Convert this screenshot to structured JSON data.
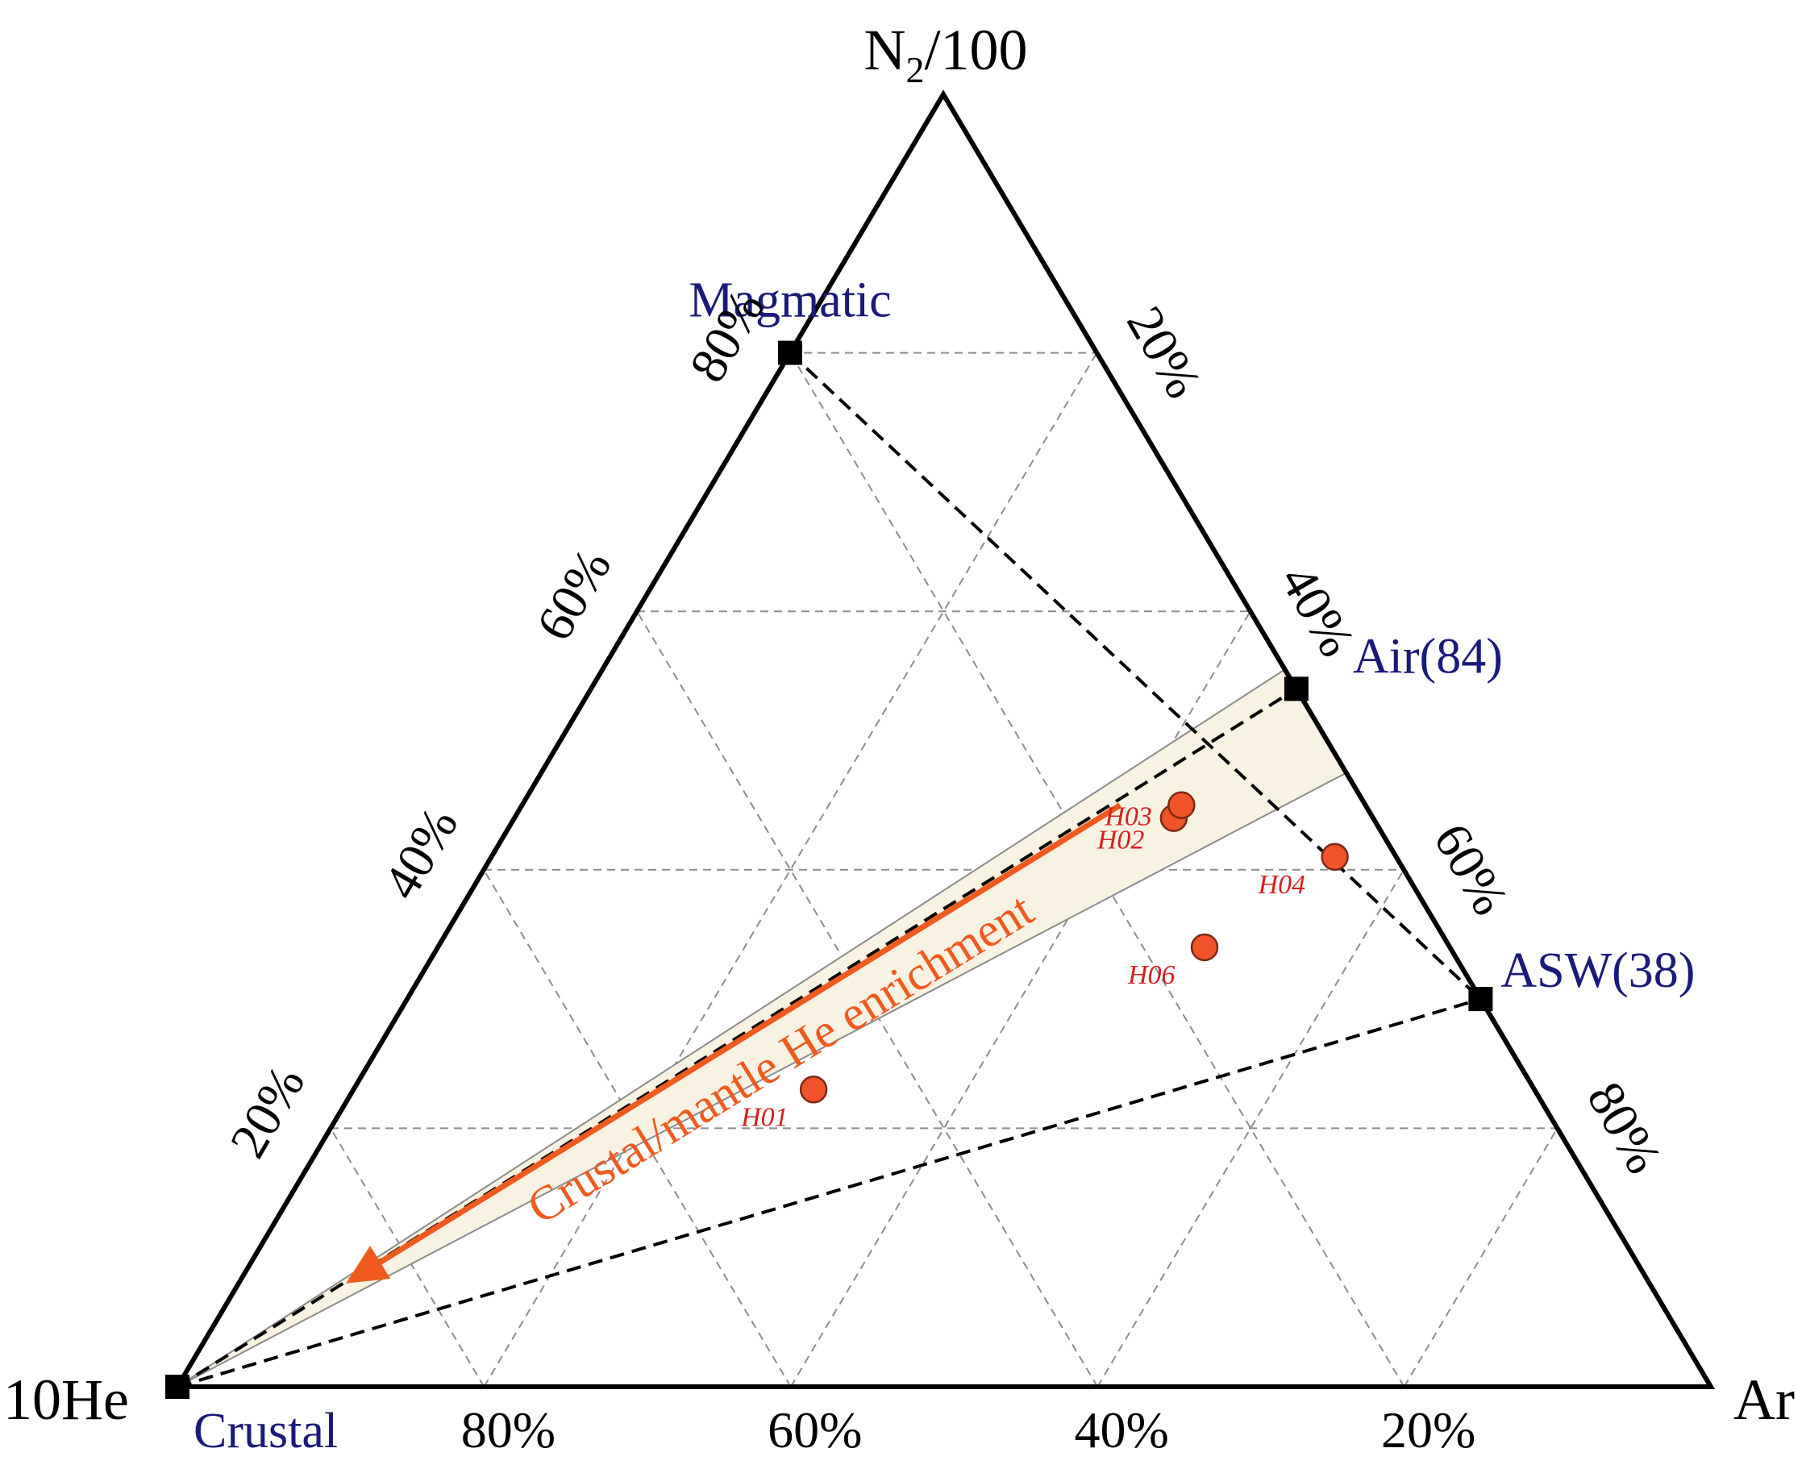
{
  "chart_data": {
    "type": "scatter",
    "subtype": "ternary",
    "vertices": {
      "top": "N",
      "top_sub": "2",
      "top_suffix": "/100",
      "left": "10He",
      "right": "Ar"
    },
    "axes": {
      "bottom_ticks": [
        "80%",
        "60%",
        "40%",
        "20%"
      ],
      "left_ticks": [
        "20%",
        "40%",
        "60%",
        "80%"
      ],
      "right_ticks": [
        "20%",
        "40%",
        "60%",
        "80%"
      ]
    },
    "grid": true,
    "end_members": [
      {
        "label": "Magmatic",
        "N2": 0.8,
        "He": 0.2,
        "Ar": 0.0
      },
      {
        "label": "Air(84)",
        "N2": 0.54,
        "He": 0.0,
        "Ar": 0.46
      },
      {
        "label": "ASW(38)",
        "N2": 0.3,
        "He": 0.0,
        "Ar": 0.7
      },
      {
        "label": "Crustal",
        "N2": 0.0,
        "He": 1.0,
        "Ar": 0.0
      }
    ],
    "samples": [
      {
        "name": "H01",
        "N2": 0.23,
        "He": 0.47,
        "Ar": 0.3
      },
      {
        "name": "H02",
        "N2": 0.44,
        "He": 0.13,
        "Ar": 0.43
      },
      {
        "name": "H03",
        "N2": 0.45,
        "He": 0.12,
        "Ar": 0.43
      },
      {
        "name": "H04",
        "N2": 0.41,
        "He": 0.04,
        "Ar": 0.55
      },
      {
        "name": "H06",
        "N2": 0.34,
        "He": 0.16,
        "Ar": 0.5
      }
    ],
    "sample_labels": {
      "H01": "H01",
      "H02": "H02",
      "H03": "H03",
      "H04": "H04",
      "H06": "H06"
    },
    "annotation": "Crustal/mantle He enrichment",
    "colors": {
      "sample_fill": "#f0522a",
      "sample_label": "#d62020",
      "arrow": "#f05a1e",
      "band": "#f8f2e3",
      "end_member_label": "#1a1a7a"
    }
  }
}
